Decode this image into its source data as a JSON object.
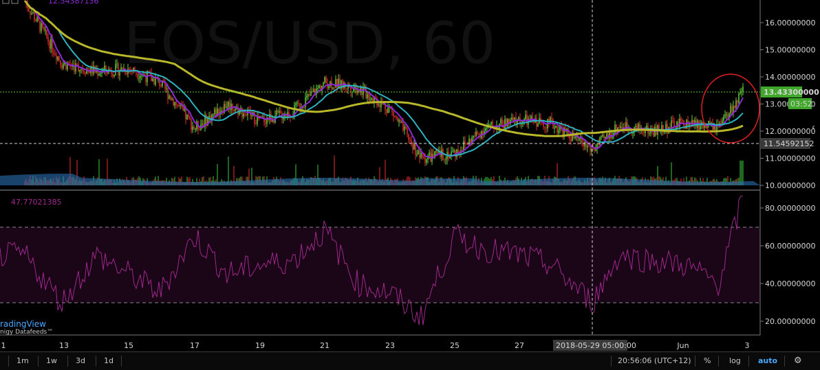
{
  "watermark": "EOS/USD, 60",
  "top_overlay_value": "12.54387136",
  "price_axis": {
    "ticks": [
      "16.00000000",
      "15.00000000",
      "14.00000000",
      "13.00000000",
      "12.00000000",
      "11.00000000",
      "10.00000000"
    ],
    "current_price_label": "13.43300000",
    "countdown_label": "03:52",
    "crosshair_price_label": "11.54592152"
  },
  "rsi": {
    "value_label": "47.77021385",
    "ticks": [
      "80.00000000",
      "60.00000000",
      "40.00000000",
      "20.00000000"
    ],
    "upper_band": 70,
    "lower_band": 30
  },
  "time_axis": {
    "labels": [
      "1",
      "13",
      "15",
      "17",
      "19",
      "21",
      "23",
      "25",
      "27",
      "Jun",
      "3"
    ],
    "crosshair_time_label": "2018-05-29 05:00:00"
  },
  "branding": {
    "logo": "radingView",
    "feed": "nigy Datafeeds™"
  },
  "toolbar": {
    "intervals": [
      "1m",
      "1w",
      "3d",
      "1d"
    ],
    "clock": "20:56:06 (UTC+12)",
    "percent_label": "%",
    "log_label": "log",
    "auto_label": "auto",
    "settings_icon": "gear-icon"
  },
  "side_arrow_icon": "chevron-left-icon",
  "colors": {
    "background": "#000000",
    "bull": "#5fd13e",
    "bear": "#e0302b",
    "ma_fast": "#8e2ad9",
    "ma_mid": "#2bb3c0",
    "ma_slow": "#b8b82a",
    "rsi_line": "#a0288e",
    "rsi_band_fill": "#1a0616",
    "volume_area": "#2a6fb3",
    "price_label_bg": "#3fa82a",
    "annotation_circle": "#e02020"
  },
  "chart_data": {
    "type": "candlestick",
    "title": "EOS/USD, 60",
    "price_range": [
      9.9,
      17.0
    ],
    "price_key_points": [
      {
        "x": "May 12",
        "y": 16.8
      },
      {
        "x": "May 13",
        "y": 14.5
      },
      {
        "x": "May 14",
        "y": 14.2
      },
      {
        "x": "May 15",
        "y": 14.3
      },
      {
        "x": "May 16",
        "y": 13.8
      },
      {
        "x": "May 17",
        "y": 12.1
      },
      {
        "x": "May 18",
        "y": 13.0
      },
      {
        "x": "May 19",
        "y": 12.4
      },
      {
        "x": "May 20",
        "y": 12.7
      },
      {
        "x": "May 21",
        "y": 13.8
      },
      {
        "x": "May 22",
        "y": 13.6
      },
      {
        "x": "May 23",
        "y": 12.8
      },
      {
        "x": "May 24",
        "y": 11.0
      },
      {
        "x": "May 25",
        "y": 11.2
      },
      {
        "x": "May 26",
        "y": 12.1
      },
      {
        "x": "May 27",
        "y": 12.4
      },
      {
        "x": "May 28",
        "y": 12.3
      },
      {
        "x": "May 29",
        "y": 11.3
      },
      {
        "x": "May 30",
        "y": 12.2
      },
      {
        "x": "May 31",
        "y": 12.0
      },
      {
        "x": "Jun 1",
        "y": 12.3
      },
      {
        "x": "Jun 2",
        "y": 12.1
      },
      {
        "x": "Jun 2 20:00",
        "y": 13.43
      }
    ],
    "rsi_range": [
      15,
      90
    ],
    "rsi_key_points": [
      {
        "x": "May 12",
        "y": 55
      },
      {
        "x": "May 13",
        "y": 30
      },
      {
        "x": "May 14",
        "y": 55
      },
      {
        "x": "May 15",
        "y": 45
      },
      {
        "x": "May 16",
        "y": 35
      },
      {
        "x": "May 17",
        "y": 65
      },
      {
        "x": "May 18",
        "y": 45
      },
      {
        "x": "May 19",
        "y": 50
      },
      {
        "x": "May 20",
        "y": 52
      },
      {
        "x": "May 21",
        "y": 68
      },
      {
        "x": "May 22",
        "y": 40
      },
      {
        "x": "May 23",
        "y": 35
      },
      {
        "x": "May 24",
        "y": 22
      },
      {
        "x": "May 25",
        "y": 65
      },
      {
        "x": "May 26",
        "y": 58
      },
      {
        "x": "May 27",
        "y": 55
      },
      {
        "x": "May 28",
        "y": 50
      },
      {
        "x": "May 29",
        "y": 30
      },
      {
        "x": "May 30",
        "y": 55
      },
      {
        "x": "May 31",
        "y": 52
      },
      {
        "x": "Jun 1",
        "y": 50
      },
      {
        "x": "Jun 2",
        "y": 40
      },
      {
        "x": "Jun 2 20:00",
        "y": 86
      }
    ]
  }
}
